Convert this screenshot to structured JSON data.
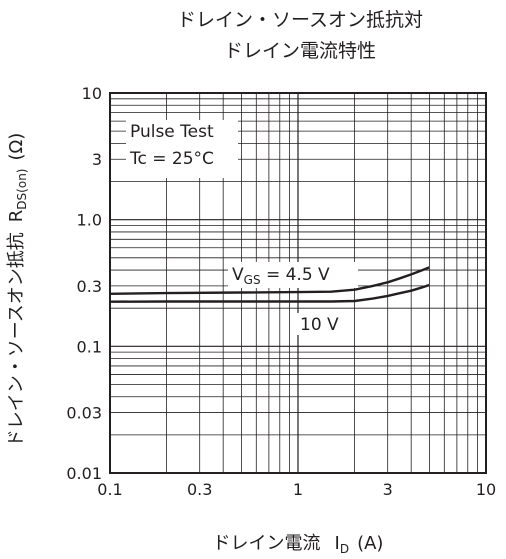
{
  "chart_data": {
    "type": "line",
    "title_line1": "ドレイン・ソースオン抵抗対",
    "title_line2": "ドレイン電流特性",
    "xlabel": {
      "main": "ドレイン電流",
      "symbol": "I",
      "sub": "D",
      "unit": "(A)"
    },
    "ylabel": {
      "main": "ドレイン・ソースオン抵抗",
      "symbol": "R",
      "sub": "DS(on)",
      "unit": "(Ω)"
    },
    "x_scale": "log",
    "y_scale": "log",
    "xlim": [
      0.1,
      10
    ],
    "ylim": [
      0.01,
      10
    ],
    "grid": true,
    "x_ticks": [
      {
        "value": 0.1,
        "label": "0.1"
      },
      {
        "value": 0.3,
        "label": "0.3"
      },
      {
        "value": 1,
        "label": "1"
      },
      {
        "value": 3,
        "label": "3"
      },
      {
        "value": 10,
        "label": "10"
      }
    ],
    "y_ticks": [
      {
        "value": 0.01,
        "label": "0.01"
      },
      {
        "value": 0.03,
        "label": "0.03"
      },
      {
        "value": 0.1,
        "label": "0.1"
      },
      {
        "value": 0.3,
        "label": "0.3"
      },
      {
        "value": 1,
        "label": "1.0"
      },
      {
        "value": 3,
        "label": "3"
      },
      {
        "value": 10,
        "label": "10"
      }
    ],
    "conditions": [
      "Pulse Test",
      "Tc = 25°C"
    ],
    "series": [
      {
        "label_prefix": "V",
        "label_sub": "GS",
        "label_suffix": " = 4.5 V",
        "x": [
          0.1,
          0.2,
          0.5,
          1,
          1.5,
          2,
          2.5,
          3,
          3.5,
          4,
          4.5,
          5
        ],
        "y": [
          0.26,
          0.263,
          0.266,
          0.268,
          0.27,
          0.28,
          0.3,
          0.32,
          0.345,
          0.37,
          0.395,
          0.42
        ]
      },
      {
        "label_prefix": "",
        "label_sub": "",
        "label_suffix": "10 V",
        "x": [
          0.1,
          0.2,
          0.5,
          1,
          1.5,
          2,
          2.5,
          3,
          3.5,
          4,
          4.5,
          5
        ],
        "y": [
          0.225,
          0.226,
          0.226,
          0.226,
          0.226,
          0.228,
          0.238,
          0.25,
          0.263,
          0.275,
          0.29,
          0.305
        ]
      }
    ]
  }
}
